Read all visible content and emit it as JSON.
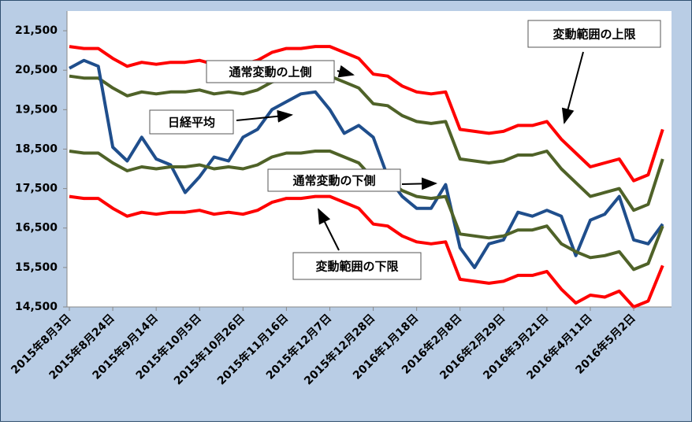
{
  "chart_data": {
    "type": "line",
    "categories": [
      "2015年8月3日",
      null,
      null,
      "2015年8月24日",
      null,
      null,
      "2015年9月14日",
      null,
      null,
      "2015年10月5日",
      null,
      null,
      "2015年10月26日",
      null,
      null,
      "2015年11月16日",
      null,
      null,
      "2015年12月7日",
      null,
      null,
      "2015年12月28日",
      null,
      null,
      "2016年1月18日",
      null,
      null,
      "2016年2月8日",
      null,
      null,
      "2016年2月29日",
      null,
      null,
      "2016年3月21日",
      null,
      null,
      "2016年4月11日",
      null,
      null,
      "2016年5月2日",
      null,
      null
    ],
    "series": [
      {
        "name": "変動範囲の上限",
        "color": "#ff0000",
        "values": [
          21100,
          21050,
          21050,
          20800,
          20600,
          20700,
          20650,
          20700,
          20700,
          20750,
          20650,
          20700,
          20650,
          20750,
          20950,
          21050,
          21050,
          21100,
          21100,
          20950,
          20800,
          20400,
          20350,
          20100,
          19950,
          19900,
          19950,
          19000,
          18950,
          18900,
          18950,
          19100,
          19100,
          19200,
          18750,
          18400,
          18050,
          18150,
          18250,
          17700,
          17850,
          19000
        ]
      },
      {
        "name": "通常変動の上側",
        "color": "#4f6228",
        "values": [
          20350,
          20300,
          20300,
          20050,
          19850,
          19950,
          19900,
          19950,
          19950,
          20000,
          19900,
          19950,
          19900,
          20000,
          20200,
          20300,
          20300,
          20350,
          20350,
          20200,
          20050,
          19650,
          19600,
          19350,
          19200,
          19150,
          19200,
          18250,
          18200,
          18150,
          18200,
          18350,
          18350,
          18450,
          18000,
          17650,
          17300,
          17400,
          17500,
          16950,
          17100,
          18250
        ]
      },
      {
        "name": "日経平均",
        "color": "#1f4e8c",
        "values": [
          20550,
          20750,
          20600,
          18550,
          18200,
          18800,
          18250,
          18100,
          17400,
          17800,
          18300,
          18200,
          18800,
          19000,
          19500,
          19700,
          19900,
          19950,
          19500,
          18900,
          19100,
          18800,
          17800,
          17300,
          17000,
          17000,
          17600,
          16000,
          15500,
          16100,
          16200,
          16900,
          16800,
          16950,
          16800,
          15800,
          16700,
          16850,
          17300,
          16200,
          16100,
          16600
        ]
      },
      {
        "name": "通常変動の下側",
        "color": "#4f6228",
        "values": [
          18450,
          18400,
          18400,
          18150,
          17950,
          18050,
          18000,
          18050,
          18050,
          18100,
          18000,
          18050,
          18000,
          18100,
          18300,
          18400,
          18400,
          18450,
          18450,
          18300,
          18150,
          17750,
          17700,
          17450,
          17300,
          17250,
          17300,
          16350,
          16300,
          16250,
          16300,
          16450,
          16450,
          16550,
          16100,
          15900,
          15750,
          15800,
          15900,
          15450,
          15600,
          16550
        ]
      },
      {
        "name": "変動範囲の下限",
        "color": "#ff0000",
        "values": [
          17300,
          17250,
          17250,
          17000,
          16800,
          16900,
          16850,
          16900,
          16900,
          16950,
          16850,
          16900,
          16850,
          16950,
          17150,
          17250,
          17250,
          17300,
          17300,
          17150,
          17000,
          16600,
          16550,
          16300,
          16150,
          16100,
          16150,
          15200,
          15150,
          15100,
          15150,
          15300,
          15300,
          15400,
          14950,
          14600,
          14800,
          14750,
          14900,
          14500,
          14650,
          15550
        ]
      }
    ],
    "ylim": [
      14500,
      22000
    ],
    "yticks": [
      {
        "value": 14500,
        "label": "14,500"
      },
      {
        "value": 15500,
        "label": "15,500"
      },
      {
        "value": 16500,
        "label": "16,500"
      },
      {
        "value": 17500,
        "label": "17,500"
      },
      {
        "value": 18500,
        "label": "18,500"
      },
      {
        "value": 19500,
        "label": "19,500"
      },
      {
        "value": 20500,
        "label": "20,500"
      },
      {
        "value": 21500,
        "label": "21,500"
      }
    ],
    "grid": false
  }
}
